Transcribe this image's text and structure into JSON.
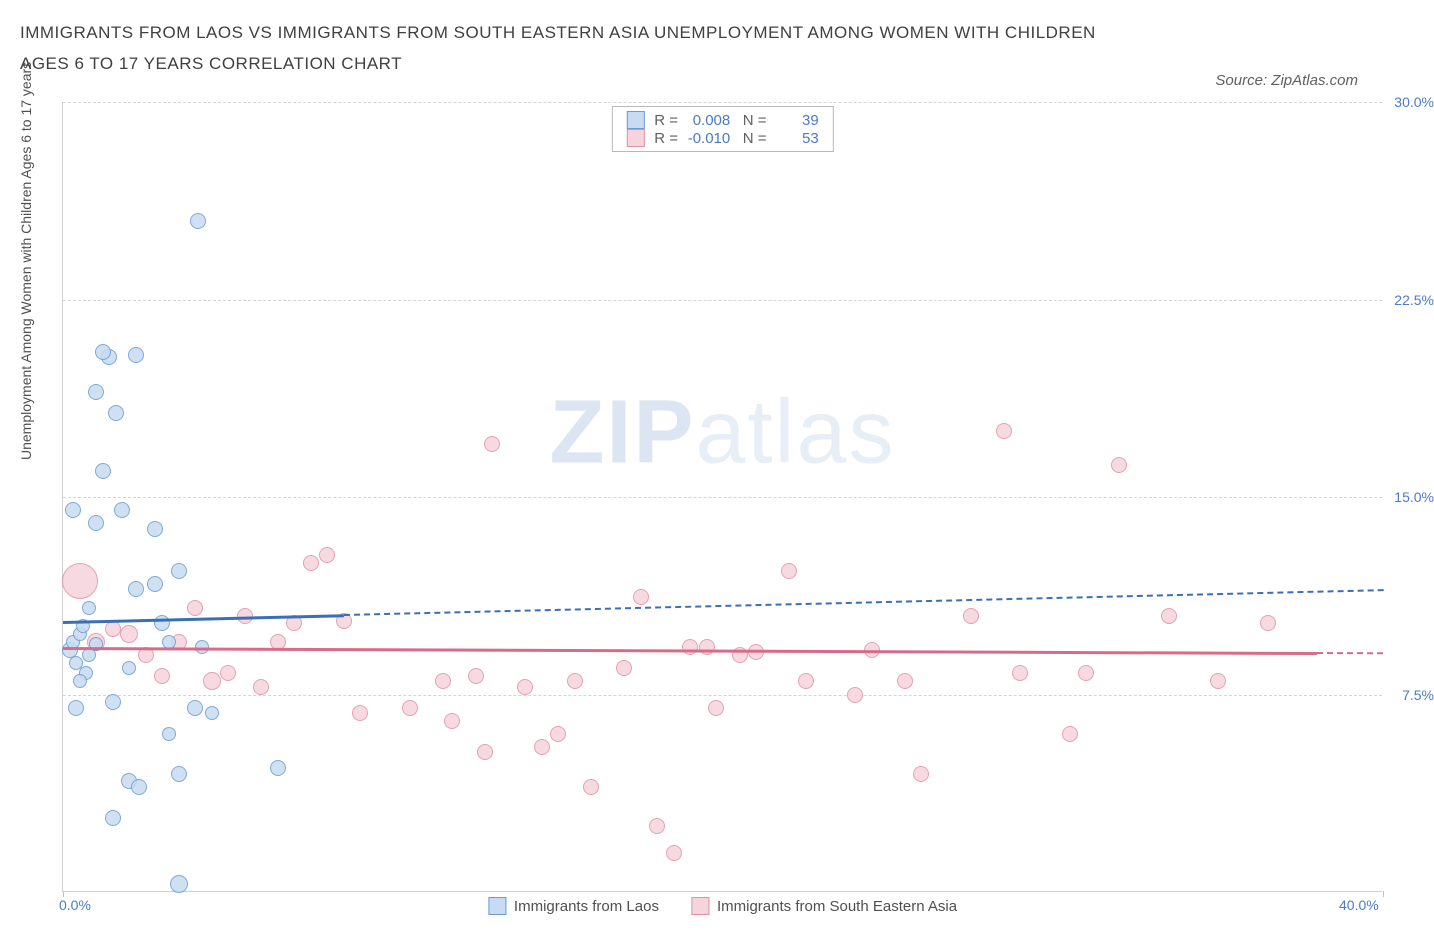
{
  "title": "IMMIGRANTS FROM LAOS VS IMMIGRANTS FROM SOUTH EASTERN ASIA UNEMPLOYMENT AMONG WOMEN WITH CHILDREN AGES 6 TO 17 YEARS CORRELATION CHART",
  "source_prefix": "Source: ",
  "source_name": "ZipAtlas.com",
  "y_axis_label": "Unemployment Among Women with Children Ages 6 to 17 years",
  "watermark_a": "ZIP",
  "watermark_b": "atlas",
  "chart": {
    "type": "scatter",
    "x_range": [
      0,
      40
    ],
    "y_range": [
      0,
      30
    ],
    "y_ticks": [
      7.5,
      15.0,
      22.5,
      30.0
    ],
    "y_tick_labels": [
      "7.5%",
      "15.0%",
      "22.5%",
      "30.0%"
    ],
    "x_ticks": [
      0,
      40
    ],
    "x_tick_labels": [
      "0.0%",
      "40.0%"
    ],
    "background_color": "#ffffff",
    "grid_color": "#d5d5d5",
    "axis_label_color": "#4a7bc4",
    "title_color": "#404040",
    "title_fontsize": 17
  },
  "series": [
    {
      "name": "Immigrants from Laos",
      "color_fill": "#c7dbf2",
      "color_stroke": "#6b9bd1",
      "legend_label": "Immigrants from Laos",
      "stats": {
        "r_label": "R =",
        "r_value": "0.008",
        "n_label": "N =",
        "n_value": "39"
      },
      "trend": {
        "x1": 0,
        "y1": 10.3,
        "x2_solid": 8.5,
        "x2_dash": 40,
        "y2": 11.5,
        "color": "#3b6fb5"
      },
      "points": [
        {
          "x": 0.2,
          "y": 9.2,
          "r": 8
        },
        {
          "x": 0.3,
          "y": 9.5,
          "r": 7
        },
        {
          "x": 0.4,
          "y": 8.7,
          "r": 7
        },
        {
          "x": 0.5,
          "y": 9.8,
          "r": 7
        },
        {
          "x": 0.6,
          "y": 10.1,
          "r": 7
        },
        {
          "x": 0.4,
          "y": 7.0,
          "r": 8
        },
        {
          "x": 0.8,
          "y": 9.0,
          "r": 7
        },
        {
          "x": 0.3,
          "y": 14.5,
          "r": 8
        },
        {
          "x": 1.0,
          "y": 14.0,
          "r": 8
        },
        {
          "x": 1.8,
          "y": 14.5,
          "r": 8
        },
        {
          "x": 2.8,
          "y": 13.8,
          "r": 8
        },
        {
          "x": 1.2,
          "y": 16.0,
          "r": 8
        },
        {
          "x": 1.6,
          "y": 18.2,
          "r": 8
        },
        {
          "x": 1.0,
          "y": 19.0,
          "r": 8
        },
        {
          "x": 1.4,
          "y": 20.3,
          "r": 8
        },
        {
          "x": 2.2,
          "y": 20.4,
          "r": 8
        },
        {
          "x": 1.2,
          "y": 20.5,
          "r": 8
        },
        {
          "x": 4.1,
          "y": 25.5,
          "r": 8
        },
        {
          "x": 2.2,
          "y": 11.5,
          "r": 8
        },
        {
          "x": 2.8,
          "y": 11.7,
          "r": 8
        },
        {
          "x": 3.0,
          "y": 10.2,
          "r": 8
        },
        {
          "x": 3.2,
          "y": 9.5,
          "r": 7
        },
        {
          "x": 4.0,
          "y": 7.0,
          "r": 8
        },
        {
          "x": 4.5,
          "y": 6.8,
          "r": 7
        },
        {
          "x": 3.2,
          "y": 6.0,
          "r": 7
        },
        {
          "x": 3.5,
          "y": 4.5,
          "r": 8
        },
        {
          "x": 2.0,
          "y": 4.2,
          "r": 8
        },
        {
          "x": 2.3,
          "y": 4.0,
          "r": 8
        },
        {
          "x": 1.5,
          "y": 2.8,
          "r": 8
        },
        {
          "x": 3.5,
          "y": 0.3,
          "r": 9
        },
        {
          "x": 6.5,
          "y": 4.7,
          "r": 8
        },
        {
          "x": 4.2,
          "y": 9.3,
          "r": 7
        },
        {
          "x": 1.0,
          "y": 9.4,
          "r": 7
        },
        {
          "x": 0.7,
          "y": 8.3,
          "r": 7
        },
        {
          "x": 0.5,
          "y": 8.0,
          "r": 7
        },
        {
          "x": 2.0,
          "y": 8.5,
          "r": 7
        },
        {
          "x": 1.5,
          "y": 7.2,
          "r": 8
        },
        {
          "x": 0.8,
          "y": 10.8,
          "r": 7
        },
        {
          "x": 3.5,
          "y": 12.2,
          "r": 8
        }
      ]
    },
    {
      "name": "Immigrants from South Eastern Asia",
      "color_fill": "#f6d4dc",
      "color_stroke": "#e091a5",
      "legend_label": "Immigrants from South Eastern Asia",
      "stats": {
        "r_label": "R =",
        "r_value": "-0.010",
        "n_label": "N =",
        "n_value": "53"
      },
      "trend": {
        "x1": 0,
        "y1": 9.3,
        "x2_solid": 38,
        "x2_dash": 40,
        "y2": 9.1,
        "color": "#d96b8a"
      },
      "points": [
        {
          "x": 0.5,
          "y": 11.8,
          "r": 18
        },
        {
          "x": 1.0,
          "y": 9.5,
          "r": 9
        },
        {
          "x": 1.5,
          "y": 10.0,
          "r": 8
        },
        {
          "x": 2.0,
          "y": 9.8,
          "r": 9
        },
        {
          "x": 2.5,
          "y": 9.0,
          "r": 8
        },
        {
          "x": 3.0,
          "y": 8.2,
          "r": 8
        },
        {
          "x": 3.5,
          "y": 9.5,
          "r": 8
        },
        {
          "x": 4.0,
          "y": 10.8,
          "r": 8
        },
        {
          "x": 4.5,
          "y": 8.0,
          "r": 9
        },
        {
          "x": 5.0,
          "y": 8.3,
          "r": 8
        },
        {
          "x": 5.5,
          "y": 10.5,
          "r": 8
        },
        {
          "x": 6.0,
          "y": 7.8,
          "r": 8
        },
        {
          "x": 6.5,
          "y": 9.5,
          "r": 8
        },
        {
          "x": 7.0,
          "y": 10.2,
          "r": 8
        },
        {
          "x": 7.5,
          "y": 12.5,
          "r": 8
        },
        {
          "x": 8.0,
          "y": 12.8,
          "r": 8
        },
        {
          "x": 8.5,
          "y": 10.3,
          "r": 8
        },
        {
          "x": 9.0,
          "y": 6.8,
          "r": 8
        },
        {
          "x": 10.5,
          "y": 7.0,
          "r": 8
        },
        {
          "x": 11.5,
          "y": 8.0,
          "r": 8
        },
        {
          "x": 11.8,
          "y": 6.5,
          "r": 8
        },
        {
          "x": 12.5,
          "y": 8.2,
          "r": 8
        },
        {
          "x": 12.8,
          "y": 5.3,
          "r": 8
        },
        {
          "x": 13.0,
          "y": 17.0,
          "r": 8
        },
        {
          "x": 14.0,
          "y": 7.8,
          "r": 8
        },
        {
          "x": 14.5,
          "y": 5.5,
          "r": 8
        },
        {
          "x": 15.0,
          "y": 6.0,
          "r": 8
        },
        {
          "x": 15.5,
          "y": 8.0,
          "r": 8
        },
        {
          "x": 16.0,
          "y": 4.0,
          "r": 8
        },
        {
          "x": 17.0,
          "y": 8.5,
          "r": 8
        },
        {
          "x": 17.5,
          "y": 11.2,
          "r": 8
        },
        {
          "x": 18.0,
          "y": 2.5,
          "r": 8
        },
        {
          "x": 18.5,
          "y": 1.5,
          "r": 8
        },
        {
          "x": 19.5,
          "y": 9.3,
          "r": 8
        },
        {
          "x": 19.8,
          "y": 7.0,
          "r": 8
        },
        {
          "x": 20.5,
          "y": 9.0,
          "r": 8
        },
        {
          "x": 21.0,
          "y": 9.1,
          "r": 8
        },
        {
          "x": 22.0,
          "y": 12.2,
          "r": 8
        },
        {
          "x": 22.5,
          "y": 8.0,
          "r": 8
        },
        {
          "x": 24.0,
          "y": 7.5,
          "r": 8
        },
        {
          "x": 24.5,
          "y": 9.2,
          "r": 8
        },
        {
          "x": 25.5,
          "y": 8.0,
          "r": 8
        },
        {
          "x": 26.0,
          "y": 4.5,
          "r": 8
        },
        {
          "x": 27.5,
          "y": 10.5,
          "r": 8
        },
        {
          "x": 28.5,
          "y": 17.5,
          "r": 8
        },
        {
          "x": 29.0,
          "y": 8.3,
          "r": 8
        },
        {
          "x": 30.5,
          "y": 6.0,
          "r": 8
        },
        {
          "x": 31.0,
          "y": 8.3,
          "r": 8
        },
        {
          "x": 32.0,
          "y": 16.2,
          "r": 8
        },
        {
          "x": 33.5,
          "y": 10.5,
          "r": 8
        },
        {
          "x": 35.0,
          "y": 8.0,
          "r": 8
        },
        {
          "x": 36.5,
          "y": 10.2,
          "r": 8
        },
        {
          "x": 19.0,
          "y": 9.3,
          "r": 8
        }
      ]
    }
  ]
}
